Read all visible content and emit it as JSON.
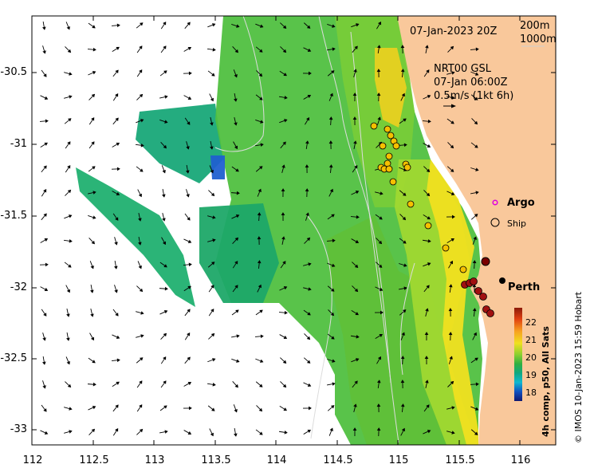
{
  "map": {
    "timestamp": "07-Jan-2023 20Z",
    "contours": [
      "200m",
      "1000m"
    ],
    "current_model": {
      "line1": "NRT00 GSL",
      "line2": "07-Jan 06:00Z",
      "line3": "0.5m/s (1kt 6h)"
    },
    "legend": {
      "argo": "Argo",
      "ship": "Ship"
    },
    "place_label": "Perth",
    "colorbar": {
      "title": "4h comp, p50, All Sats",
      "ticks": [
        "22",
        "21",
        "20",
        "19",
        "18"
      ]
    },
    "credit": "© IMOS 10-Jan-2023 15:59 Hobart",
    "lon_ticks": [
      "112",
      "112.5",
      "113",
      "113.5",
      "114",
      "114.5",
      "115",
      "115.5",
      "116"
    ],
    "lat_ticks": [
      "-30.5",
      "-31",
      "-31.5",
      "-32",
      "-32.5",
      "-33"
    ],
    "colors": {
      "land": "#f9c89b",
      "sst_warm": "#f0e020",
      "sst_mid": "#60c830",
      "sst_cool": "#18a878",
      "ship_ring": "#000000",
      "argo_marker": "#e000e0"
    }
  }
}
